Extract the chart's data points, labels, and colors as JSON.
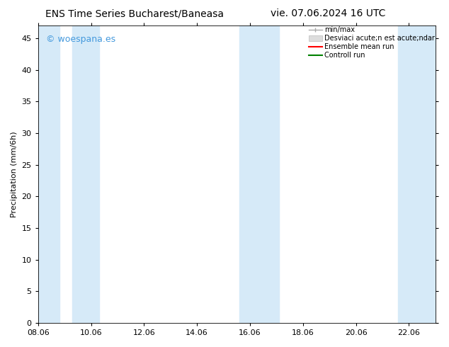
{
  "title_left": "ENS Time Series Bucharest/Baneasa",
  "title_right": "vie. 07.06.2024 16 UTC",
  "ylabel": "Precipitation (mm/6h)",
  "watermark": "© woespana.es",
  "watermark_color": "#4499dd",
  "background_color": "#ffffff",
  "plot_bg_color": "#ffffff",
  "ylim": [
    0,
    47
  ],
  "yticks": [
    0,
    5,
    10,
    15,
    20,
    25,
    30,
    35,
    40,
    45
  ],
  "xtick_labels": [
    "08.06",
    "10.06",
    "12.06",
    "14.06",
    "16.06",
    "18.06",
    "20.06",
    "22.06"
  ],
  "xtick_positions": [
    0,
    2,
    4,
    6,
    8,
    10,
    12,
    14
  ],
  "x_min": 0.0,
  "x_max": 15.0,
  "bands": [
    [
      0.0,
      0.8
    ],
    [
      1.3,
      2.3
    ],
    [
      7.6,
      9.1
    ],
    [
      13.6,
      15.0
    ]
  ],
  "band_color": "#d6eaf8",
  "legend_labels": [
    "min/max",
    "Desviaci acute;n est acute;ndar",
    "Ensemble mean run",
    "Controll run"
  ],
  "legend_colors": [
    "#aaaaaa",
    "#cccccc",
    "#ff0000",
    "#008000"
  ],
  "font_size_title": 10,
  "font_size_label": 8,
  "font_size_tick": 8,
  "font_size_legend": 7,
  "font_size_watermark": 9
}
